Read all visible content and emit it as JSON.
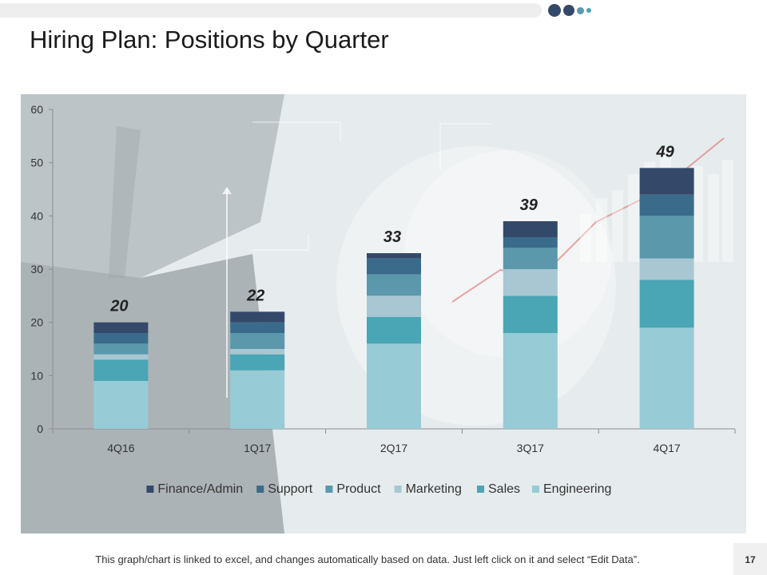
{
  "slide": {
    "title": "Hiring Plan: Positions by Quarter",
    "footer_note": "This graph/chart is linked to excel, and changes automatically based on data. Just left click on it and select “Edit Data”.",
    "page_number": "17",
    "accent_colors": [
      "#34496a",
      "#3a6b8a",
      "#5b98ab",
      "#a8c7d2",
      "#4aa5b5",
      "#97cbd5"
    ]
  },
  "chart_data": {
    "type": "bar",
    "stacked": true,
    "categories": [
      "4Q16",
      "1Q17",
      "2Q17",
      "3Q17",
      "4Q17"
    ],
    "ylim": [
      0,
      60
    ],
    "yticks": [
      0,
      10,
      20,
      30,
      40,
      50,
      60
    ],
    "legend_position": "bottom",
    "totals": [
      20,
      22,
      33,
      39,
      49
    ],
    "series": [
      {
        "name": "Engineering",
        "color": "#97cbd5",
        "values": [
          9,
          11,
          16,
          18,
          19
        ]
      },
      {
        "name": "Sales",
        "color": "#4aa5b5",
        "values": [
          4,
          3,
          5,
          7,
          9
        ]
      },
      {
        "name": "Marketing",
        "color": "#a8c7d2",
        "values": [
          1,
          1,
          4,
          5,
          4
        ]
      },
      {
        "name": "Product",
        "color": "#5b98ab",
        "values": [
          2,
          3,
          4,
          4,
          8
        ]
      },
      {
        "name": "Support",
        "color": "#3a6b8a",
        "values": [
          2,
          2,
          3,
          2,
          4
        ]
      },
      {
        "name": "Finance/Admin",
        "color": "#34496a",
        "values": [
          2,
          2,
          1,
          3,
          5
        ]
      }
    ],
    "legend_order": [
      "Finance/Admin",
      "Support",
      "Product",
      "Marketing",
      "Sales",
      "Engineering"
    ]
  }
}
